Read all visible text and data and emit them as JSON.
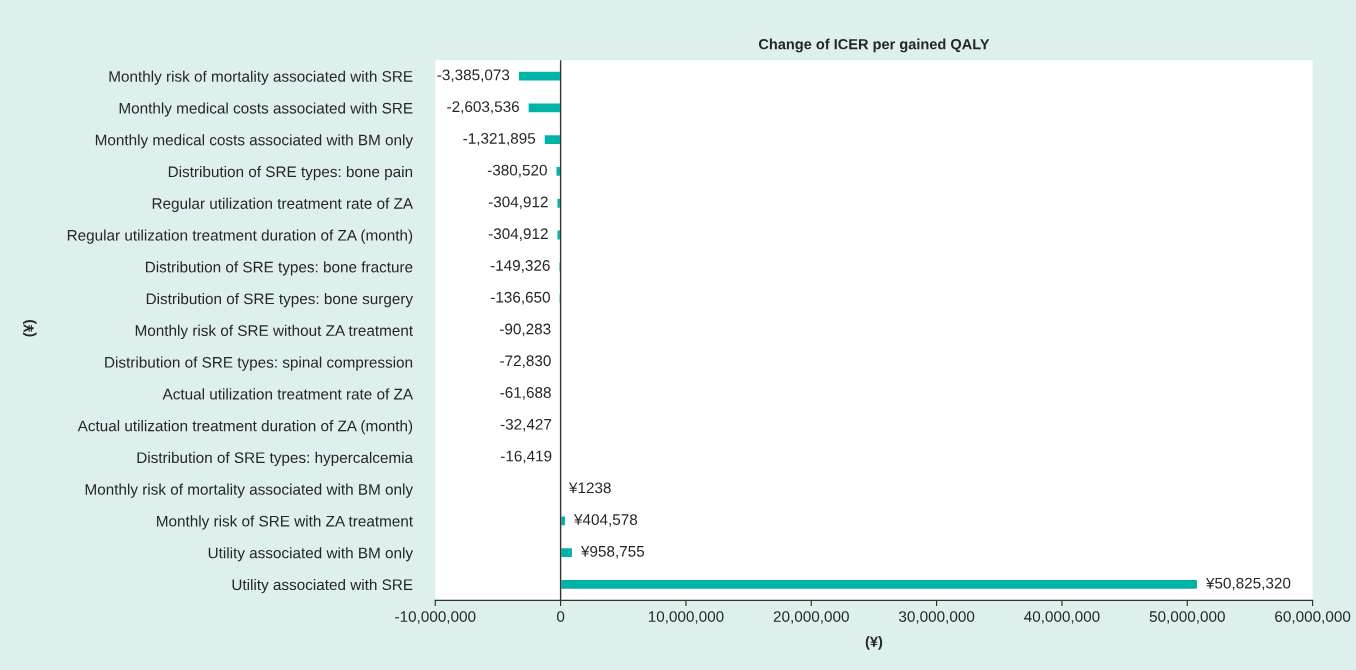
{
  "chart_data": {
    "type": "bar",
    "orientation": "horizontal",
    "title": "Change of ICER per gained QALY",
    "xlabel": "(¥)",
    "ylabel": "(¥)",
    "categories": [
      "Monthly risk of mortality associated with SRE",
      "Monthly medical costs associated with SRE",
      "Monthly medical costs associated with BM only",
      "Distribution of SRE types: bone pain",
      "Regular utilization treatment rate of ZA",
      "Regular utilization treatment duration of ZA (month)",
      "Distribution of SRE types: bone fracture",
      "Distribution of SRE types: bone surgery",
      "Monthly risk of SRE without ZA treatment",
      "Distribution of SRE types: spinal compression",
      "Actual utilization treatment rate of ZA",
      "Actual utilization treatment duration of ZA (month)",
      "Distribution of SRE types: hypercalcemia",
      "Monthly risk of mortality associated with BM only",
      "Monthly risk of SRE with ZA treatment",
      "Utility associated with BM only",
      "Utility associated with SRE"
    ],
    "values": [
      -3385073,
      -2603536,
      -1321895,
      -380520,
      -304912,
      -304912,
      -149326,
      -136650,
      -90283,
      -72830,
      -61688,
      -32427,
      -16419,
      1238,
      404578,
      958755,
      50825320
    ],
    "value_labels": [
      "-3,385,073",
      "-2,603,536",
      "-1,321,895",
      "-380,520",
      "-304,912",
      "-304,912",
      "-149,326",
      "-136,650",
      "-90,283",
      "-72,830",
      "-61,688",
      "-32,427",
      "-16,419",
      "¥1238",
      "¥404,578",
      "¥958,755",
      "¥50,825,320"
    ],
    "color": "#00b3a7",
    "xlim": [
      -10000000,
      60000000
    ],
    "xticks": [
      {
        "value": -10000000,
        "label": "-10,000,000"
      },
      0,
      {
        "value": 10000000,
        "label": "10,000,000"
      },
      {
        "value": 20000000,
        "label": "20,000,000"
      },
      {
        "value": 30000000,
        "label": "30,000,000"
      },
      {
        "value": 40000000,
        "label": "40,000,000"
      },
      {
        "value": 50000000,
        "label": "50,000,000"
      },
      {
        "value": 60000000,
        "label": "60,000,000"
      }
    ],
    "ref_lines": [
      {
        "axis": "x",
        "value": 0,
        "color": "#333333"
      }
    ],
    "grid": false,
    "legend": false
  }
}
